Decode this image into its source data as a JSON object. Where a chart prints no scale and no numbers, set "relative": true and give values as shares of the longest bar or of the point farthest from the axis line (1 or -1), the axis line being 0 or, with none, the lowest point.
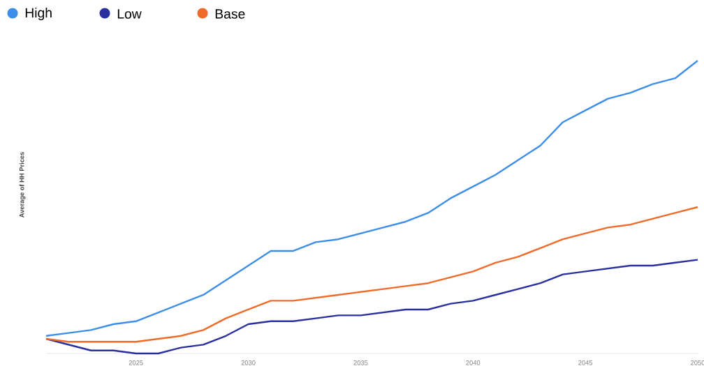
{
  "chart_data": {
    "type": "line",
    "ylabel": "Average of HH Prices",
    "relative": true,
    "x": [
      2021,
      2022,
      2023,
      2024,
      2025,
      2026,
      2027,
      2028,
      2029,
      2030,
      2031,
      2032,
      2033,
      2034,
      2035,
      2036,
      2037,
      2038,
      2039,
      2040,
      2041,
      2042,
      2043,
      2044,
      2045,
      2046,
      2047,
      2048,
      2049,
      2050
    ],
    "xlim": [
      2021,
      2050
    ],
    "xticks": [
      2025,
      2030,
      2035,
      2040,
      2045,
      2050
    ],
    "tick_labels": "x",
    "legend": "top left",
    "marker": "none",
    "line_style": "solid",
    "series": [
      {
        "name": "High",
        "color": "#3d8ee8",
        "values": [
          0.06,
          0.07,
          0.08,
          0.1,
          0.11,
          0.14,
          0.17,
          0.2,
          0.25,
          0.3,
          0.35,
          0.35,
          0.38,
          0.39,
          0.41,
          0.43,
          0.45,
          0.48,
          0.53,
          0.57,
          0.61,
          0.66,
          0.71,
          0.79,
          0.83,
          0.87,
          0.89,
          0.92,
          0.94,
          1
        ]
      },
      {
        "name": "Low",
        "color": "#2a2fa0",
        "values": [
          0.05,
          0.03,
          0.01,
          0.01,
          0,
          0,
          0.02,
          0.03,
          0.06,
          0.1,
          0.11,
          0.11,
          0.12,
          0.13,
          0.13,
          0.14,
          0.15,
          0.15,
          0.17,
          0.18,
          0.2,
          0.22,
          0.24,
          0.27,
          0.28,
          0.29,
          0.3,
          0.3,
          0.31,
          0.32
        ]
      },
      {
        "name": "Base",
        "color": "#f06a2a",
        "values": [
          0.05,
          0.04,
          0.04,
          0.04,
          0.04,
          0.05,
          0.06,
          0.08,
          0.12,
          0.15,
          0.18,
          0.18,
          0.19,
          0.2,
          0.21,
          0.22,
          0.23,
          0.24,
          0.26,
          0.28,
          0.31,
          0.33,
          0.36,
          0.39,
          0.41,
          0.43,
          0.44,
          0.46,
          0.48,
          0.5
        ]
      }
    ]
  }
}
